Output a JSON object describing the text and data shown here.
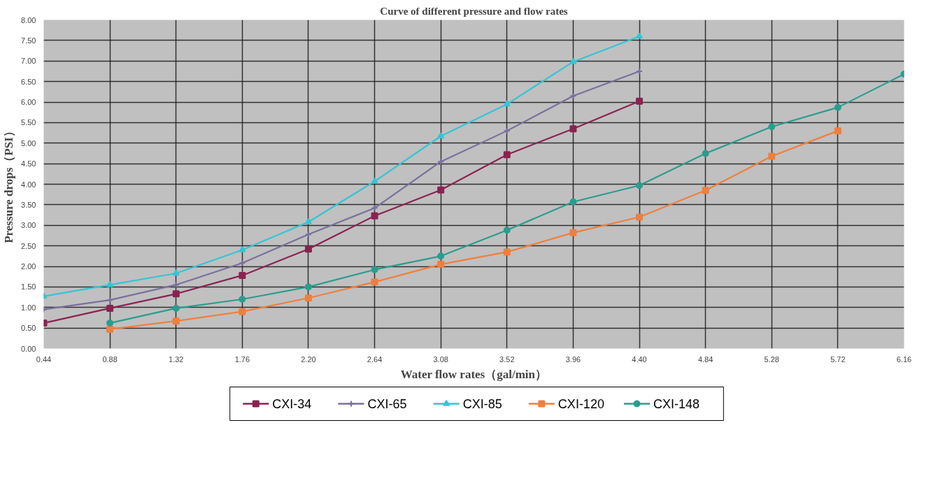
{
  "chart_data": {
    "type": "line",
    "title": "Curve of different pressure and flow rates",
    "xlabel": "Water flow rates（gal/min）",
    "ylabel": "Pressure drops（PSI）",
    "xlim": [
      0.44,
      6.16
    ],
    "xticks": [
      {
        "value": 0.44,
        "label": "0.44"
      },
      {
        "value": 0.88,
        "label": "0.88"
      },
      {
        "value": 1.32,
        "label": "1.32"
      },
      {
        "value": 1.76,
        "label": "1.76"
      },
      {
        "value": 2.2,
        "label": "2.20"
      },
      {
        "value": 2.64,
        "label": "2.64"
      },
      {
        "value": 3.08,
        "label": "3.08"
      },
      {
        "value": 3.52,
        "label": "3.52"
      },
      {
        "value": 3.96,
        "label": "3.96"
      },
      {
        "value": 4.4,
        "label": "4.40"
      },
      {
        "value": 4.84,
        "label": "4.84"
      },
      {
        "value": 5.28,
        "label": "5.28"
      },
      {
        "value": 5.72,
        "label": "5.72"
      },
      {
        "value": 6.16,
        "label": "6.16"
      }
    ],
    "ylim": [
      0,
      8
    ],
    "yticks": [
      {
        "value": 0,
        "label": "0.00"
      },
      {
        "value": 0.5,
        "label": "0.50"
      },
      {
        "value": 1,
        "label": "1.00"
      },
      {
        "value": 1.5,
        "label": "1.50"
      },
      {
        "value": 2,
        "label": "2.00"
      },
      {
        "value": 2.5,
        "label": "2.50"
      },
      {
        "value": 3,
        "label": "3.00"
      },
      {
        "value": 3.5,
        "label": "3.50"
      },
      {
        "value": 4,
        "label": "4.00"
      },
      {
        "value": 4.5,
        "label": "4.50"
      },
      {
        "value": 5,
        "label": "5.00"
      },
      {
        "value": 5.5,
        "label": "5.50"
      },
      {
        "value": 6,
        "label": "6.00"
      },
      {
        "value": 6.5,
        "label": "6.50"
      },
      {
        "value": 7,
        "label": "7.00"
      },
      {
        "value": 7.5,
        "label": "7.50"
      },
      {
        "value": 8,
        "label": "8.00"
      }
    ],
    "grid": true,
    "legend": "bottom",
    "series": [
      {
        "name": "CXI-34",
        "color": "#8b2252",
        "marker": "square",
        "x": [
          0.44,
          0.88,
          1.32,
          1.76,
          2.2,
          2.64,
          3.08,
          3.52,
          3.96,
          4.4
        ],
        "values": [
          0.62,
          0.98,
          1.33,
          1.78,
          2.42,
          3.23,
          3.86,
          4.72,
          5.35,
          6.02
        ]
      },
      {
        "name": "CXI-65",
        "color": "#7b6f9e",
        "marker": "cross",
        "x": [
          0.44,
          0.88,
          1.32,
          1.76,
          2.2,
          2.64,
          3.08,
          3.52,
          3.96,
          4.4
        ],
        "values": [
          0.95,
          1.18,
          1.55,
          2.08,
          2.78,
          3.42,
          4.55,
          5.3,
          6.15,
          6.75
        ]
      },
      {
        "name": "CXI-85",
        "color": "#33c5d6",
        "marker": "triangle",
        "x": [
          0.44,
          0.88,
          1.32,
          1.76,
          2.2,
          2.64,
          3.08,
          3.52,
          3.96,
          4.4
        ],
        "values": [
          1.27,
          1.55,
          1.83,
          2.4,
          3.08,
          4.07,
          5.17,
          5.95,
          6.98,
          7.6
        ]
      },
      {
        "name": "CXI-120",
        "color": "#f07f3c",
        "marker": "square",
        "x": [
          0.88,
          1.32,
          1.76,
          2.2,
          2.64,
          3.08,
          3.52,
          3.96,
          4.4,
          4.84,
          5.28,
          5.72
        ],
        "values": [
          0.47,
          0.67,
          0.9,
          1.23,
          1.62,
          2.05,
          2.35,
          2.82,
          3.2,
          3.85,
          4.68,
          5.3
        ]
      },
      {
        "name": "CXI-148",
        "color": "#2a9d8f",
        "marker": "circle",
        "x": [
          0.88,
          1.32,
          1.76,
          2.2,
          2.64,
          3.08,
          3.52,
          3.96,
          4.4,
          4.84,
          5.28,
          5.72,
          6.16
        ],
        "values": [
          0.62,
          0.98,
          1.2,
          1.5,
          1.92,
          2.25,
          2.88,
          3.57,
          3.97,
          4.75,
          5.4,
          5.87,
          6.68
        ]
      }
    ]
  }
}
